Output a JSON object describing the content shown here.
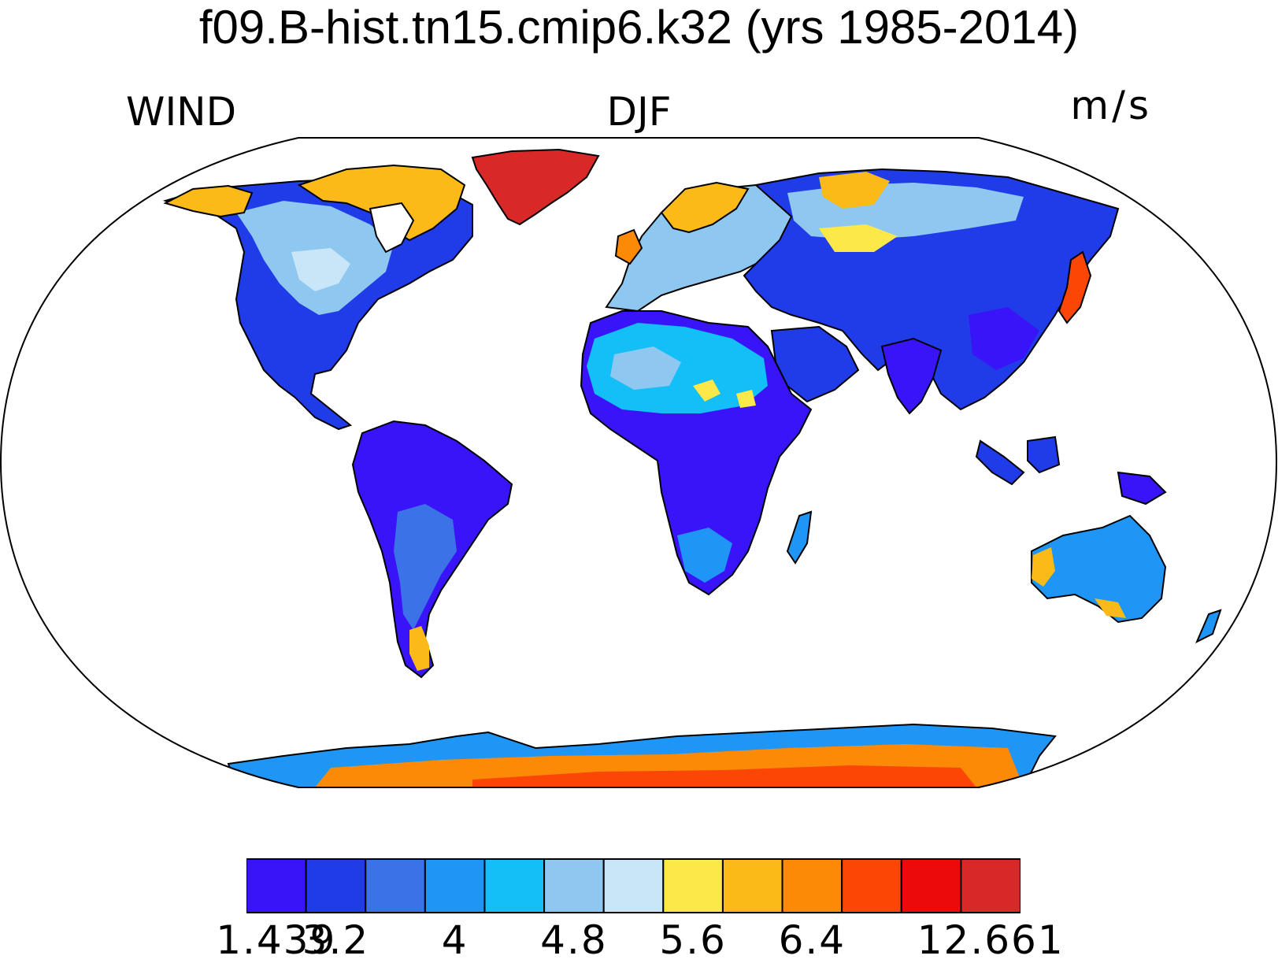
{
  "title": "f09.B-hist.tn15.cmip6.k32 (yrs 1985-2014)",
  "left_label": "WIND",
  "center_label": "DJF",
  "units": "m/s",
  "colors": {
    "background": "#ffffff",
    "coastline": "#000000"
  },
  "colorbar": {
    "colors": [
      "#3a14f8",
      "#1f3ce8",
      "#3b72e8",
      "#1f96f6",
      "#14bef6",
      "#8ec8f0",
      "#c8e6f8",
      "#fde84a",
      "#fbba18",
      "#fc8a06",
      "#fc4606",
      "#ec0a0a",
      "#d82828"
    ],
    "tick_labels": [
      {
        "text": "1.439",
        "boundary": 0
      },
      {
        "text": "3.2",
        "boundary": 1
      },
      {
        "text": "4",
        "boundary": 3
      },
      {
        "text": "4.8",
        "boundary": 5
      },
      {
        "text": "5.6",
        "boundary": 7
      },
      {
        "text": "6.4",
        "boundary": 9
      },
      {
        "text": "12.661",
        "boundary": 12
      }
    ]
  }
}
